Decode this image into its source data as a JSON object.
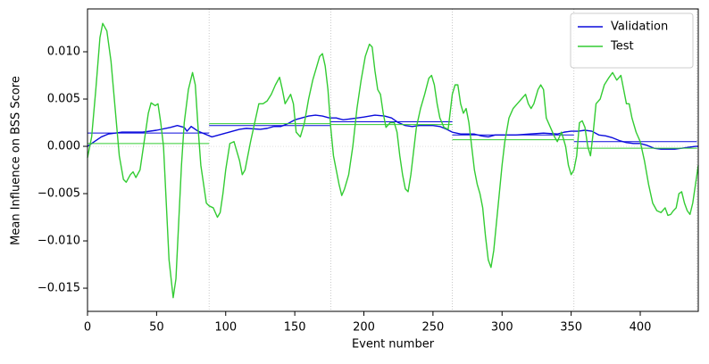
{
  "chart_data": {
    "type": "line",
    "xlabel": "Event number",
    "ylabel": "Mean Influence on BSS Score",
    "xlim": [
      0,
      442
    ],
    "ylim": [
      -0.01745,
      0.01453
    ],
    "xticks": [
      0,
      50,
      100,
      150,
      200,
      250,
      300,
      350,
      400
    ],
    "yticks": [
      {
        "value": -0.015,
        "label": "−0.015"
      },
      {
        "value": -0.01,
        "label": "−0.010"
      },
      {
        "value": -0.005,
        "label": "−0.005"
      },
      {
        "value": 0,
        "label": "0.000"
      },
      {
        "value": 0.005,
        "label": "0.005"
      },
      {
        "value": 0.01,
        "label": "0.010"
      }
    ],
    "segment_edges": [
      0,
      88,
      176,
      264,
      352,
      441
    ],
    "legend": "upper right",
    "series": [
      {
        "name": "Validation",
        "color": "#0a0adc",
        "x": [
          0,
          5,
          10,
          15,
          20,
          25,
          30,
          40,
          50,
          60,
          65,
          70,
          72,
          75,
          80,
          85,
          90,
          95,
          100,
          105,
          110,
          115,
          125,
          130,
          135,
          140,
          145,
          150,
          155,
          160,
          165,
          170,
          175,
          180,
          185,
          190,
          200,
          208,
          215,
          220,
          225,
          230,
          235,
          240,
          250,
          255,
          260,
          264,
          270,
          280,
          285,
          290,
          295,
          300,
          305,
          310,
          320,
          330,
          340,
          345,
          350,
          355,
          360,
          365,
          370,
          375,
          380,
          385,
          390,
          395,
          400,
          405,
          410,
          415,
          420,
          425,
          430,
          435,
          440,
          442
        ],
        "values": [
          0.0,
          0.0005,
          0.001,
          0.0013,
          0.0014,
          0.0015,
          0.0015,
          0.0015,
          0.0017,
          0.002,
          0.0022,
          0.002,
          0.0016,
          0.0021,
          0.0016,
          0.0013,
          0.001,
          0.0012,
          0.0014,
          0.0016,
          0.0018,
          0.0019,
          0.0018,
          0.0019,
          0.0021,
          0.0021,
          0.0024,
          0.0028,
          0.003,
          0.0032,
          0.0033,
          0.0032,
          0.003,
          0.003,
          0.0028,
          0.0029,
          0.0031,
          0.0033,
          0.0032,
          0.003,
          0.0025,
          0.0022,
          0.0021,
          0.0022,
          0.0022,
          0.0021,
          0.0018,
          0.0015,
          0.0013,
          0.0013,
          0.0011,
          0.001,
          0.0012,
          0.0012,
          0.0012,
          0.0012,
          0.0013,
          0.0014,
          0.0013,
          0.0015,
          0.0016,
          0.0016,
          0.0017,
          0.0016,
          0.0012,
          0.0011,
          0.0009,
          0.0006,
          0.0004,
          0.0003,
          0.0003,
          0.0001,
          -0.0002,
          -0.0003,
          -0.0003,
          -0.0003,
          -0.0002,
          -0.0001,
          0.0,
          0.0
        ],
        "segment_means": [
          0.0014,
          0.0022,
          0.0026,
          0.0012,
          0.0005
        ]
      },
      {
        "name": "Test",
        "color": "#33cc33",
        "x": [
          0,
          3,
          6,
          9,
          11,
          14,
          17,
          20,
          23,
          26,
          28,
          31,
          33,
          35,
          38,
          41,
          44,
          46,
          49,
          51,
          53,
          55,
          57,
          59,
          62,
          64,
          66,
          68,
          70,
          73,
          76,
          78,
          80,
          82,
          84,
          86,
          88,
          91,
          94,
          96,
          98,
          100,
          103,
          106,
          108,
          110,
          112,
          114,
          116,
          118,
          121,
          124,
          127,
          130,
          133,
          136,
          139,
          141,
          143,
          145,
          147,
          149,
          151,
          154,
          157,
          160,
          163,
          166,
          168,
          170,
          172,
          174,
          176,
          178,
          180,
          182,
          184,
          186,
          189,
          192,
          195,
          198,
          201,
          204,
          206,
          208,
          210,
          212,
          214,
          216,
          219,
          222,
          224,
          226,
          228,
          230,
          232,
          234,
          236,
          238,
          241,
          244,
          247,
          249,
          251,
          253,
          255,
          258,
          261,
          264,
          266,
          268,
          270,
          272,
          274,
          276,
          278,
          280,
          282,
          284,
          286,
          288,
          290,
          292,
          294,
          296,
          298,
          300,
          302,
          305,
          308,
          311,
          314,
          317,
          319,
          321,
          323,
          326,
          328,
          330,
          332,
          335,
          338,
          340,
          343,
          346,
          348,
          350,
          352,
          354,
          356,
          358,
          360,
          362,
          364,
          366,
          368,
          371,
          374,
          377,
          380,
          383,
          386,
          388,
          390,
          392,
          394,
          397,
          400,
          403,
          406,
          409,
          412,
          415,
          418,
          420,
          422,
          424,
          426,
          428,
          430,
          432,
          434,
          436,
          438,
          440,
          442
        ],
        "values": [
          -0.0012,
          0.001,
          0.006,
          0.0115,
          0.013,
          0.0122,
          0.009,
          0.004,
          -0.001,
          -0.0035,
          -0.0038,
          -0.003,
          -0.0027,
          -0.0033,
          -0.0025,
          0.0005,
          0.0035,
          0.0046,
          0.0043,
          0.0045,
          0.0025,
          0.0,
          -0.006,
          -0.012,
          -0.016,
          -0.014,
          -0.008,
          -0.002,
          0.0025,
          0.006,
          0.0078,
          0.0065,
          0.002,
          -0.002,
          -0.004,
          -0.006,
          -0.0063,
          -0.0065,
          -0.0075,
          -0.007,
          -0.005,
          -0.0025,
          0.0003,
          0.0005,
          -0.0005,
          -0.0015,
          -0.003,
          -0.0025,
          -0.001,
          0.0005,
          0.0025,
          0.0045,
          0.0045,
          0.0048,
          0.0055,
          0.0065,
          0.0073,
          0.006,
          0.0045,
          0.005,
          0.0055,
          0.0045,
          0.0015,
          0.001,
          0.0025,
          0.005,
          0.007,
          0.0085,
          0.0095,
          0.0098,
          0.0085,
          0.006,
          0.002,
          -0.001,
          -0.0025,
          -0.004,
          -0.0052,
          -0.0045,
          -0.003,
          0.0,
          0.004,
          0.007,
          0.0095,
          0.0108,
          0.0105,
          0.008,
          0.006,
          0.0055,
          0.0035,
          0.002,
          0.0025,
          0.0025,
          0.0015,
          -0.001,
          -0.003,
          -0.0045,
          -0.0048,
          -0.003,
          -0.0005,
          0.002,
          0.004,
          0.0055,
          0.0072,
          0.0075,
          0.0065,
          0.0045,
          0.003,
          0.002,
          0.0018,
          0.0055,
          0.0065,
          0.0065,
          0.0045,
          0.0035,
          0.004,
          0.0025,
          0.0,
          -0.0025,
          -0.004,
          -0.005,
          -0.0065,
          -0.0095,
          -0.012,
          -0.0128,
          -0.011,
          -0.008,
          -0.005,
          -0.002,
          0.0005,
          0.003,
          0.004,
          0.0045,
          0.005,
          0.0055,
          0.0045,
          0.004,
          0.0045,
          0.006,
          0.0065,
          0.006,
          0.003,
          0.002,
          0.001,
          0.0005,
          0.0015,
          0.0,
          -0.002,
          -0.003,
          -0.0025,
          -0.001,
          0.0025,
          0.0027,
          0.002,
          0.0,
          -0.001,
          0.0015,
          0.0045,
          0.005,
          0.0065,
          0.0072,
          0.0078,
          0.007,
          0.0075,
          0.006,
          0.0045,
          0.0045,
          0.003,
          0.0015,
          0.0005,
          -0.0015,
          -0.004,
          -0.006,
          -0.0068,
          -0.007,
          -0.0065,
          -0.0073,
          -0.0072,
          -0.0068,
          -0.0065,
          -0.005,
          -0.0048,
          -0.006,
          -0.0068,
          -0.0072,
          -0.006,
          -0.004,
          -0.002
        ],
        "segment_means": [
          0.0003,
          0.0024,
          0.0023,
          0.0007,
          -0.0002
        ]
      }
    ]
  }
}
